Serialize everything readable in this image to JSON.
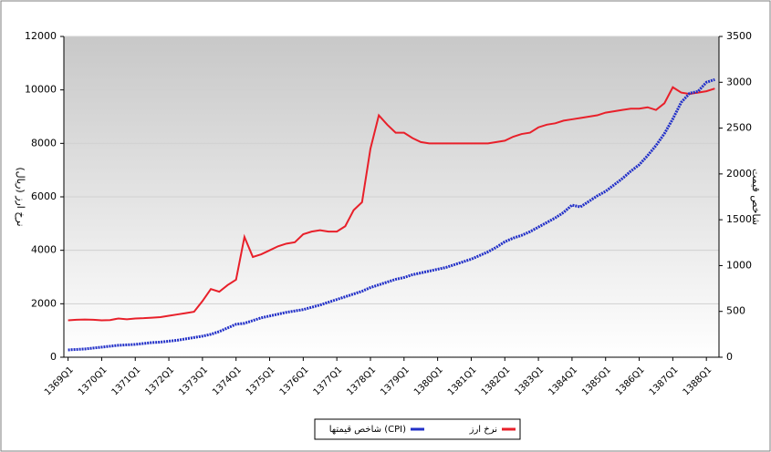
{
  "chart_data": {
    "type": "line",
    "categories": [
      "1369Q1",
      null,
      null,
      null,
      "1370Q1",
      null,
      null,
      null,
      "1371Q1",
      null,
      null,
      null,
      "1372Q1",
      null,
      null,
      null,
      "1373Q1",
      null,
      null,
      null,
      "1374Q1",
      null,
      null,
      null,
      "1375Q1",
      null,
      null,
      null,
      "1376Q1",
      null,
      null,
      null,
      "1377Q1",
      null,
      null,
      null,
      "1378Q1",
      null,
      null,
      null,
      "1379Q1",
      null,
      null,
      null,
      "1380Q1",
      null,
      null,
      null,
      "1381Q1",
      null,
      null,
      null,
      "1382Q1",
      null,
      null,
      null,
      "1383Q1",
      null,
      null,
      null,
      "1384Q1",
      null,
      null,
      null,
      "1385Q1",
      null,
      null,
      null,
      "1386Q1",
      null,
      null,
      null,
      "1387Q1",
      null,
      null,
      null,
      "1388Q1",
      null
    ],
    "series": [
      {
        "name": "نرخ ارز",
        "color": "#e8202a",
        "values": [
          1380,
          1400,
          1410,
          1400,
          1380,
          1390,
          1450,
          1420,
          1450,
          1460,
          1480,
          1500,
          1550,
          1600,
          1650,
          1700,
          2100,
          2550,
          2450,
          2700,
          2900,
          4500,
          3750,
          3850,
          4000,
          4150,
          4250,
          4300,
          4600,
          4700,
          4750,
          4700,
          4700,
          4900,
          5500,
          5800,
          7800,
          9050,
          8700,
          8400,
          8400,
          8200,
          8050,
          8000,
          8000,
          8000,
          8000,
          8000,
          8000,
          8000,
          8000,
          8050,
          8100,
          8250,
          8350,
          8400,
          8600,
          8700,
          8750,
          8850,
          8900,
          8950,
          9000,
          9050,
          9150,
          9200,
          9250,
          9300,
          9300,
          9350,
          9250,
          9500,
          10100,
          9900,
          9850,
          9900,
          9950,
          10050
        ]
      },
      {
        "name": "شاخص قیمتها (CPI)",
        "color": "#2230c8",
        "axis": "y2",
        "values": [
          80,
          85,
          90,
          100,
          110,
          120,
          130,
          135,
          140,
          150,
          160,
          165,
          175,
          185,
          200,
          215,
          230,
          250,
          280,
          320,
          360,
          370,
          400,
          430,
          450,
          470,
          490,
          505,
          520,
          545,
          570,
          600,
          630,
          660,
          690,
          720,
          760,
          790,
          820,
          850,
          870,
          900,
          920,
          940,
          960,
          980,
          1010,
          1040,
          1070,
          1110,
          1150,
          1200,
          1260,
          1300,
          1330,
          1370,
          1420,
          1470,
          1520,
          1580,
          1660,
          1640,
          1700,
          1760,
          1810,
          1880,
          1950,
          2030,
          2100,
          2200,
          2310,
          2440,
          2600,
          2780,
          2880,
          2900,
          3000,
          3030
        ]
      }
    ],
    "ylabel": "نرخ ارز (ریال)",
    "y2label": "شاخص قیمت",
    "ylim": [
      0,
      12000
    ],
    "yticks": [
      0,
      2000,
      4000,
      6000,
      8000,
      10000,
      12000
    ],
    "y2lim": [
      0,
      3500
    ],
    "y2ticks": [
      0,
      500,
      1000,
      1500,
      2000,
      2500,
      3000,
      3500
    ],
    "grid": true
  }
}
